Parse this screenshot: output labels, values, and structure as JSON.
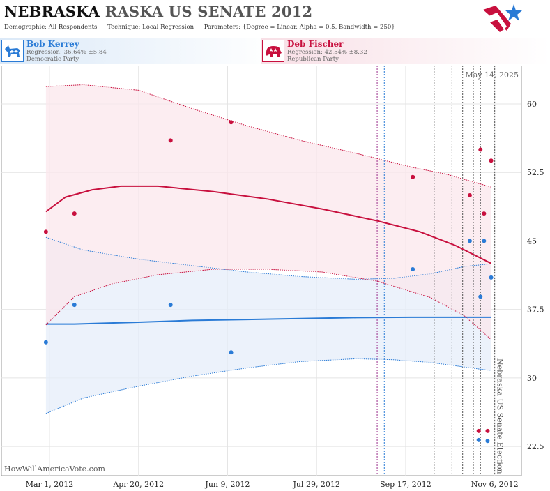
{
  "header": {
    "title_state": "NEBRASKA",
    "title_race": "RASKA US SENATE 2012",
    "demographic_label": "Demographic:",
    "demographic_value": "All Respondents",
    "technique_label": "Technique:",
    "technique_value": "Local Regression",
    "parameters_label": "Parameters:",
    "parameters_value": "{Degree = Linear, Alpha = 0.5, Bandwidth = 250}",
    "logo_colors": {
      "red": "#c8103e",
      "blue": "#2a7bd6"
    }
  },
  "candidates": {
    "dem": {
      "name": "Bob Kerrey",
      "regression": "Regression: 36.64% ±5.84",
      "party": "Democratic Party",
      "icon": "donkey-icon",
      "color": "#2a7bd6"
    },
    "rep": {
      "name": "Deb Fischer",
      "regression": "Regression: 42.54% ±8.32",
      "party": "Republican Party",
      "icon": "elephant-icon",
      "color": "#c8103e"
    }
  },
  "chart_data": {
    "type": "scatter",
    "date_label": "May 14, 2025",
    "watermark": "HowWillAmericaVote.com",
    "election_label": "Nebraska US Senate Election",
    "x_ticks": [
      {
        "date": "2012-03-01",
        "label": "Mar 1, 2012"
      },
      {
        "date": "2012-04-20",
        "label": "Apr 20, 2012"
      },
      {
        "date": "2012-06-09",
        "label": "Jun 9, 2012"
      },
      {
        "date": "2012-07-29",
        "label": "Jul 29, 2012"
      },
      {
        "date": "2012-09-17",
        "label": "Sep 17, 2012"
      },
      {
        "date": "2012-11-06",
        "label": "Nov 6, 2012"
      }
    ],
    "xlim": [
      "2012-02-03",
      "2012-11-21"
    ],
    "y_ticks": [
      {
        "value": 22.5,
        "label": "22.5"
      },
      {
        "value": 30,
        "label": "30"
      },
      {
        "value": 37.5,
        "label": "37.5"
      },
      {
        "value": 45,
        "label": "45"
      },
      {
        "value": 52.5,
        "label": "52.5"
      },
      {
        "value": 60,
        "label": "60"
      }
    ],
    "ylim": [
      19.3,
      64.2
    ],
    "grid": true,
    "vertical_lines": [
      {
        "date": "2012-09-01",
        "color": "#9b2d8c"
      },
      {
        "date": "2012-09-05",
        "color": "#2a7bd6"
      },
      {
        "date": "2012-10-03",
        "color": "#555555"
      },
      {
        "date": "2012-10-13",
        "color": "#555555"
      },
      {
        "date": "2012-10-19",
        "color": "#555555"
      },
      {
        "date": "2012-10-25",
        "color": "#555555"
      },
      {
        "date": "2012-10-29",
        "color": "#555555"
      },
      {
        "date": "2012-11-06",
        "color": "#555555"
      }
    ],
    "series": [
      {
        "party": "dem",
        "color": "#2a7bd6",
        "band_fill": "#e6eef9",
        "points": [
          {
            "x": "2012-02-28",
            "y": 33.9
          },
          {
            "x": "2012-03-15",
            "y": 38.0
          },
          {
            "x": "2012-05-08",
            "y": 38.0
          },
          {
            "x": "2012-06-11",
            "y": 32.8
          },
          {
            "x": "2012-09-21",
            "y": 41.9
          },
          {
            "x": "2012-10-23",
            "y": 45.0
          },
          {
            "x": "2012-10-29",
            "y": 38.9
          },
          {
            "x": "2012-10-31",
            "y": 45.0
          },
          {
            "x": "2012-11-04",
            "y": 41.0
          },
          {
            "x": "2012-10-28",
            "y": 23.2
          },
          {
            "x": "2012-11-02",
            "y": 23.1
          }
        ],
        "trend": [
          {
            "x": "2012-02-28",
            "y": 35.9
          },
          {
            "x": "2012-03-15",
            "y": 35.9
          },
          {
            "x": "2012-04-20",
            "y": 36.1
          },
          {
            "x": "2012-05-20",
            "y": 36.3
          },
          {
            "x": "2012-06-20",
            "y": 36.4
          },
          {
            "x": "2012-07-20",
            "y": 36.5
          },
          {
            "x": "2012-08-20",
            "y": 36.6
          },
          {
            "x": "2012-09-20",
            "y": 36.64
          },
          {
            "x": "2012-11-04",
            "y": 36.64
          }
        ],
        "upper": [
          {
            "x": "2012-02-28",
            "y": 45.4
          },
          {
            "x": "2012-03-20",
            "y": 44.0
          },
          {
            "x": "2012-04-20",
            "y": 43.0
          },
          {
            "x": "2012-05-20",
            "y": 42.3
          },
          {
            "x": "2012-06-20",
            "y": 41.6
          },
          {
            "x": "2012-07-20",
            "y": 41.1
          },
          {
            "x": "2012-08-20",
            "y": 40.8
          },
          {
            "x": "2012-09-10",
            "y": 40.9
          },
          {
            "x": "2012-10-01",
            "y": 41.4
          },
          {
            "x": "2012-10-20",
            "y": 42.2
          },
          {
            "x": "2012-11-04",
            "y": 42.5
          }
        ],
        "lower": [
          {
            "x": "2012-02-28",
            "y": 26.1
          },
          {
            "x": "2012-03-20",
            "y": 27.8
          },
          {
            "x": "2012-04-20",
            "y": 29.1
          },
          {
            "x": "2012-05-20",
            "y": 30.2
          },
          {
            "x": "2012-06-20",
            "y": 31.1
          },
          {
            "x": "2012-07-20",
            "y": 31.8
          },
          {
            "x": "2012-08-20",
            "y": 32.1
          },
          {
            "x": "2012-09-10",
            "y": 32.0
          },
          {
            "x": "2012-10-01",
            "y": 31.7
          },
          {
            "x": "2012-10-20",
            "y": 31.2
          },
          {
            "x": "2012-11-04",
            "y": 30.8
          }
        ]
      },
      {
        "party": "rep",
        "color": "#c8103e",
        "band_fill": "#fbe7ec",
        "points": [
          {
            "x": "2012-02-28",
            "y": 46.0
          },
          {
            "x": "2012-03-15",
            "y": 48.0
          },
          {
            "x": "2012-05-08",
            "y": 56.0
          },
          {
            "x": "2012-06-11",
            "y": 58.0
          },
          {
            "x": "2012-09-21",
            "y": 52.0
          },
          {
            "x": "2012-10-23",
            "y": 50.0
          },
          {
            "x": "2012-10-29",
            "y": 55.0
          },
          {
            "x": "2012-10-31",
            "y": 48.0
          },
          {
            "x": "2012-11-04",
            "y": 53.8
          },
          {
            "x": "2012-10-28",
            "y": 24.2
          },
          {
            "x": "2012-11-02",
            "y": 24.2
          }
        ],
        "trend": [
          {
            "x": "2012-02-28",
            "y": 48.2
          },
          {
            "x": "2012-03-10",
            "y": 49.8
          },
          {
            "x": "2012-03-25",
            "y": 50.6
          },
          {
            "x": "2012-04-10",
            "y": 51.0
          },
          {
            "x": "2012-05-01",
            "y": 51.0
          },
          {
            "x": "2012-06-01",
            "y": 50.4
          },
          {
            "x": "2012-07-01",
            "y": 49.6
          },
          {
            "x": "2012-08-01",
            "y": 48.5
          },
          {
            "x": "2012-09-01",
            "y": 47.2
          },
          {
            "x": "2012-09-25",
            "y": 46.0
          },
          {
            "x": "2012-10-15",
            "y": 44.5
          },
          {
            "x": "2012-11-04",
            "y": 42.54
          }
        ],
        "upper": [
          {
            "x": "2012-02-28",
            "y": 61.9
          },
          {
            "x": "2012-03-20",
            "y": 62.1
          },
          {
            "x": "2012-04-20",
            "y": 61.5
          },
          {
            "x": "2012-05-20",
            "y": 59.5
          },
          {
            "x": "2012-06-20",
            "y": 57.6
          },
          {
            "x": "2012-07-20",
            "y": 56.0
          },
          {
            "x": "2012-08-20",
            "y": 54.6
          },
          {
            "x": "2012-09-20",
            "y": 53.1
          },
          {
            "x": "2012-10-10",
            "y": 52.3
          },
          {
            "x": "2012-11-04",
            "y": 50.9
          }
        ],
        "lower": [
          {
            "x": "2012-02-28",
            "y": 35.8
          },
          {
            "x": "2012-03-15",
            "y": 38.9
          },
          {
            "x": "2012-04-05",
            "y": 40.3
          },
          {
            "x": "2012-05-01",
            "y": 41.3
          },
          {
            "x": "2012-06-01",
            "y": 41.9
          },
          {
            "x": "2012-07-01",
            "y": 41.9
          },
          {
            "x": "2012-08-01",
            "y": 41.6
          },
          {
            "x": "2012-09-01",
            "y": 40.6
          },
          {
            "x": "2012-10-01",
            "y": 38.8
          },
          {
            "x": "2012-10-20",
            "y": 36.8
          },
          {
            "x": "2012-11-04",
            "y": 34.2
          }
        ]
      }
    ]
  }
}
